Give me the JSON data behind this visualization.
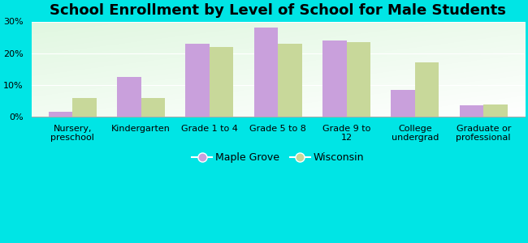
{
  "title": "School Enrollment by Level of School for Male Students",
  "categories": [
    "Nursery,\npreschool",
    "Kindergarten",
    "Grade 1 to 4",
    "Grade 5 to 8",
    "Grade 9 to\n12",
    "College\nundergrad",
    "Graduate or\nprofessional"
  ],
  "maple_grove": [
    1.5,
    12.5,
    23.0,
    28.0,
    24.0,
    8.5,
    3.5
  ],
  "wisconsin": [
    6.0,
    5.8,
    22.0,
    23.0,
    23.5,
    17.0,
    3.8
  ],
  "maple_grove_color": "#c9a0dc",
  "wisconsin_color": "#c8d89a",
  "background_color": "#00e5e5",
  "ylim": [
    0,
    30
  ],
  "yticks": [
    0,
    10,
    20,
    30
  ],
  "ytick_labels": [
    "0%",
    "10%",
    "20%",
    "30%"
  ],
  "legend_maple_grove": "Maple Grove",
  "legend_wisconsin": "Wisconsin",
  "title_fontsize": 13,
  "tick_fontsize": 8,
  "legend_fontsize": 9,
  "bar_width": 0.35
}
